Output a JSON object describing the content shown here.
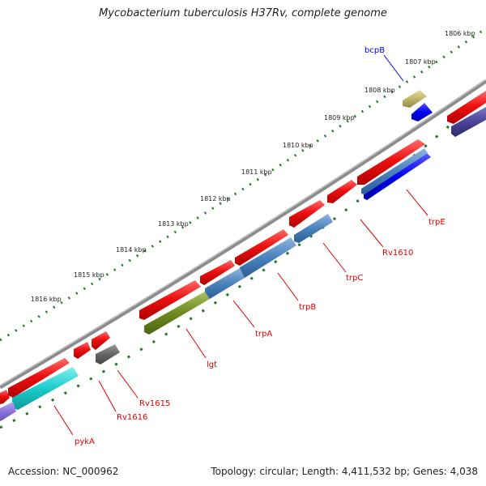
{
  "title": "Mycobacterium tuberculosis H37Rv, complete genome",
  "footer": {
    "accession": "Accession: NC_000962",
    "summary": "Topology: circular; Length: 4,411,532 bp; Genes: 4,038"
  },
  "kbp_labels": [
    "1806 kbp",
    "1807 kbp",
    "1808 kbp",
    "1809 kbp",
    "1810 kbp",
    "1811 kbp",
    "1812 kbp",
    "1813 kbp",
    "1814 kbp",
    "1815 kbp",
    "1816 kbp"
  ],
  "genes": [
    {
      "label": "bcpB",
      "color": "#0000ff"
    },
    {
      "label": "trpE",
      "color": "#e00000"
    },
    {
      "label": "Rv1610",
      "color": "#e00000"
    },
    {
      "label": "trpC",
      "color": "#e00000"
    },
    {
      "label": "trpB",
      "color": "#e00000"
    },
    {
      "label": "trpA",
      "color": "#e00000"
    },
    {
      "label": "lgt",
      "color": "#e00000"
    },
    {
      "label": "Rv1615",
      "color": "#e00000"
    },
    {
      "label": "Rv1616",
      "color": "#e00000"
    },
    {
      "label": "pykA",
      "color": "#e00000"
    }
  ],
  "colors": {
    "backbone": "#8c8c8c",
    "cds": "#ee1111",
    "tick": "#1f7a1f"
  }
}
